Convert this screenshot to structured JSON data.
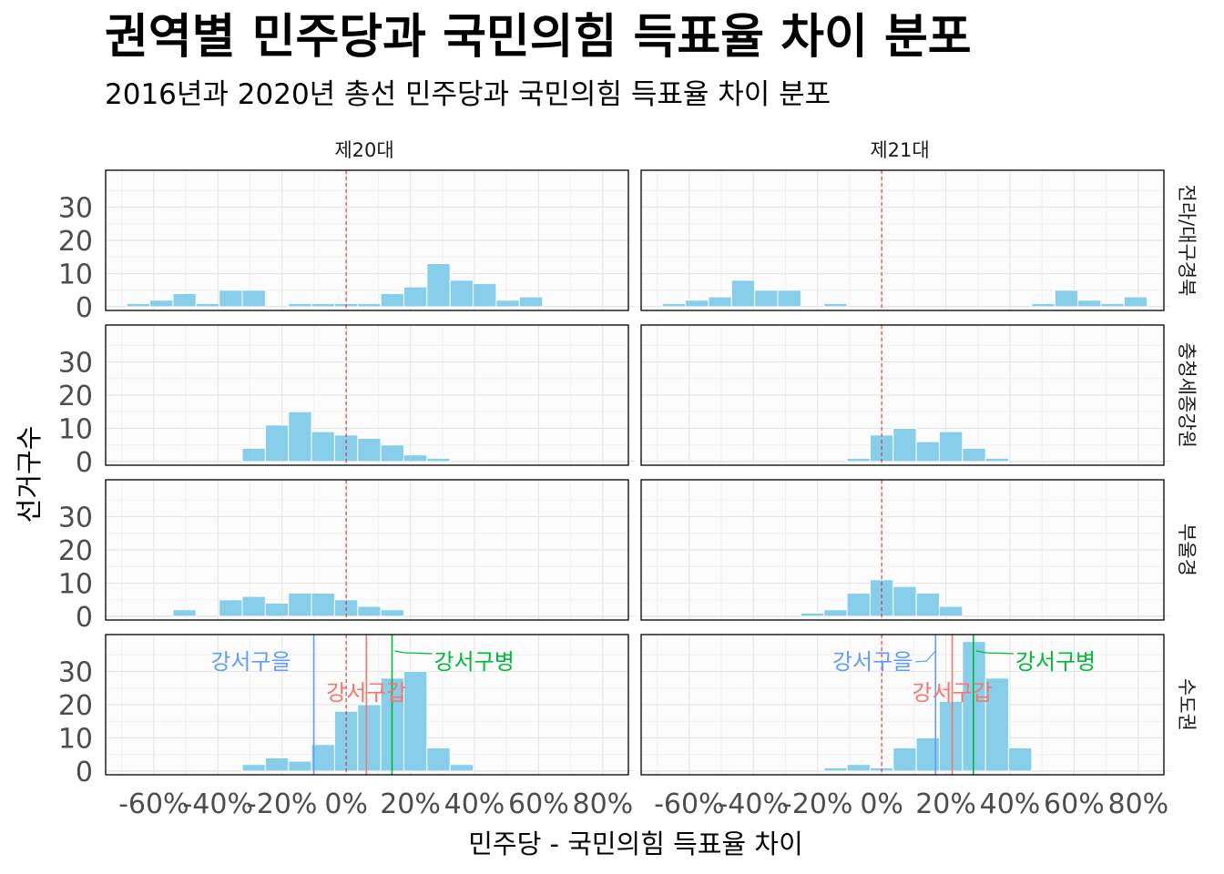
{
  "chart_data": {
    "type": "bar",
    "title": "권역별 민주당과 국민의힘 득표율 차이 분포",
    "subtitle": "2016년과 2020년 총선 민주당과 국민의힘 득표율 차이 분포",
    "xlabel": "민주당 - 국민의힘 득표율 차이",
    "ylabel": "선거구수",
    "xlim": [
      -0.72,
      0.84
    ],
    "ylim": [
      0,
      40
    ],
    "x_ticks": [
      -0.6,
      -0.4,
      -0.2,
      0.0,
      0.2,
      0.4,
      0.6,
      0.8
    ],
    "x_tick_labels": [
      "-60%",
      "-40%",
      "-20%",
      "0%",
      "20%",
      "40%",
      "60%",
      "80%"
    ],
    "y_ticks": [
      0,
      10,
      20,
      30
    ],
    "y_tick_labels": [
      "0",
      "10",
      "20",
      "30"
    ],
    "bin_width": 0.072,
    "bin_centers": [
      -0.72,
      -0.648,
      -0.576,
      -0.504,
      -0.432,
      -0.36,
      -0.288,
      -0.216,
      -0.144,
      -0.072,
      0.0,
      0.072,
      0.144,
      0.216,
      0.288,
      0.36,
      0.432,
      0.504,
      0.576,
      0.648,
      0.72,
      0.792,
      0.864
    ],
    "bar_color": "#87CEEB",
    "reference_line": {
      "x": 0,
      "color": "#E31A1C"
    },
    "columns": [
      "제20대",
      "제21대"
    ],
    "rows": [
      "전라/대구경북",
      "충청세종강원",
      "부울경",
      "수도권"
    ],
    "panels": [
      {
        "column": "제20대",
        "row": "전라/대구경북",
        "counts": [
          0,
          1,
          2,
          4,
          1,
          5,
          5,
          0,
          1,
          1,
          1,
          1,
          4,
          6,
          13,
          8,
          7,
          2,
          3,
          0,
          0,
          0,
          0
        ]
      },
      {
        "column": "제21대",
        "row": "전라/대구경북",
        "counts": [
          0,
          1,
          2,
          3,
          8,
          5,
          5,
          0,
          1,
          0,
          0,
          0,
          0,
          0,
          0,
          0,
          0,
          1,
          5,
          2,
          1,
          3,
          0
        ]
      },
      {
        "column": "제20대",
        "row": "충청세종강원",
        "counts": [
          0,
          0,
          0,
          0,
          0,
          0,
          4,
          11,
          15,
          9,
          8,
          7,
          5,
          2,
          1,
          0,
          0,
          0,
          0,
          0,
          0,
          0,
          0
        ]
      },
      {
        "column": "제21대",
        "row": "충청세종강원",
        "counts": [
          0,
          0,
          0,
          0,
          0,
          0,
          0,
          0,
          0,
          1,
          8,
          10,
          6,
          9,
          4,
          1,
          0,
          0,
          0,
          0,
          0,
          0,
          0
        ]
      },
      {
        "column": "제20대",
        "row": "부울경",
        "counts": [
          0,
          0,
          0,
          2,
          0,
          5,
          6,
          4,
          7,
          7,
          5,
          3,
          2,
          0,
          0,
          0,
          0,
          0,
          0,
          0,
          0,
          0,
          0
        ]
      },
      {
        "column": "제21대",
        "row": "부울경",
        "counts": [
          0,
          0,
          0,
          0,
          0,
          0,
          0,
          1,
          2,
          7,
          11,
          9,
          7,
          3,
          0,
          0,
          0,
          0,
          0,
          0,
          0,
          0,
          0
        ]
      },
      {
        "column": "제20대",
        "row": "수도권",
        "counts": [
          0,
          0,
          0,
          0,
          0,
          0,
          2,
          4,
          3,
          8,
          18,
          20,
          28,
          30,
          7,
          2,
          0,
          0,
          0,
          0,
          0,
          0,
          0
        ],
        "annotations": [
          {
            "label": "강서구을",
            "x": -0.101,
            "color": "#619CFF"
          },
          {
            "label": "강서구갑",
            "x": 0.063,
            "color": "#F8766D"
          },
          {
            "label": "강서구병",
            "x": 0.143,
            "color": "#00BA38"
          }
        ]
      },
      {
        "column": "제21대",
        "row": "수도권",
        "counts": [
          0,
          0,
          0,
          0,
          0,
          0,
          0,
          0,
          1,
          2,
          1,
          7,
          10,
          21,
          39,
          28,
          7,
          0,
          0,
          0,
          0,
          0,
          0
        ],
        "annotations": [
          {
            "label": "강서구을",
            "x": 0.168,
            "color": "#619CFF"
          },
          {
            "label": "강서구갑",
            "x": 0.22,
            "color": "#F8766D"
          },
          {
            "label": "강서구병",
            "x": 0.286,
            "color": "#00BA38"
          }
        ]
      }
    ]
  }
}
